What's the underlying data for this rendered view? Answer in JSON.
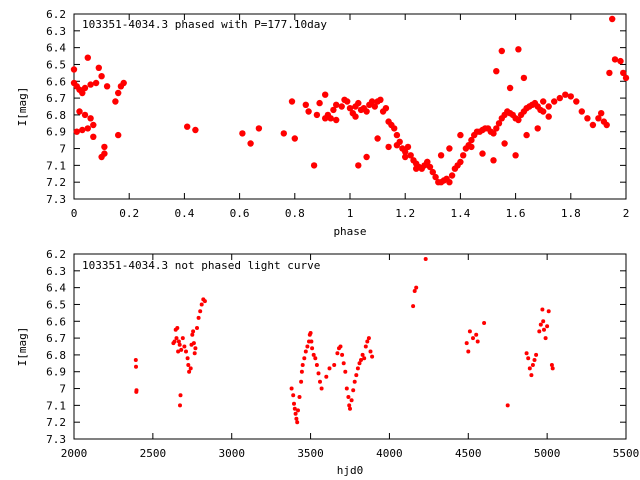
{
  "chart_data": [
    {
      "type": "scatter",
      "title": "103351-4034.3 phased with P=177.10day",
      "xlabel": "phase",
      "ylabel": "I[mag]",
      "xlim": [
        0,
        2
      ],
      "ylim": [
        7.3,
        6.2
      ],
      "y_inverted": true,
      "grid": false,
      "marker": "filled-circle",
      "color": "#ff0000",
      "xticks": [
        "0",
        "0.2",
        "0.4",
        "0.6",
        "0.8",
        "1",
        "1.2",
        "1.4",
        "1.6",
        "1.8",
        "2"
      ],
      "yticks": [
        "6.2",
        "6.3",
        "6.4",
        "6.5",
        "6.6",
        "6.7",
        "6.8",
        "6.9",
        "7",
        "7.1",
        "7.2",
        "7.3"
      ],
      "points": [
        [
          0.0,
          6.53
        ],
        [
          0.0,
          6.61
        ],
        [
          0.01,
          6.9
        ],
        [
          0.01,
          6.63
        ],
        [
          0.02,
          6.65
        ],
        [
          0.02,
          6.78
        ],
        [
          0.03,
          6.67
        ],
        [
          0.03,
          6.89
        ],
        [
          0.04,
          6.64
        ],
        [
          0.04,
          6.8
        ],
        [
          0.05,
          6.46
        ],
        [
          0.05,
          6.88
        ],
        [
          0.06,
          6.62
        ],
        [
          0.06,
          6.82
        ],
        [
          0.07,
          6.86
        ],
        [
          0.07,
          6.93
        ],
        [
          0.08,
          6.61
        ],
        [
          0.09,
          6.52
        ],
        [
          0.1,
          6.57
        ],
        [
          0.1,
          7.05
        ],
        [
          0.11,
          7.03
        ],
        [
          0.11,
          6.99
        ],
        [
          0.12,
          6.63
        ],
        [
          0.15,
          6.72
        ],
        [
          0.16,
          6.67
        ],
        [
          0.16,
          6.92
        ],
        [
          0.17,
          6.63
        ],
        [
          0.18,
          6.61
        ],
        [
          0.41,
          6.87
        ],
        [
          0.44,
          6.89
        ],
        [
          0.61,
          6.91
        ],
        [
          0.64,
          6.97
        ],
        [
          0.67,
          6.88
        ],
        [
          0.76,
          6.91
        ],
        [
          0.79,
          6.72
        ],
        [
          0.8,
          6.94
        ],
        [
          0.84,
          6.74
        ],
        [
          0.85,
          6.78
        ],
        [
          0.87,
          7.1
        ],
        [
          0.88,
          6.8
        ],
        [
          0.89,
          6.73
        ],
        [
          0.91,
          6.68
        ],
        [
          0.91,
          6.82
        ],
        [
          0.92,
          6.8
        ],
        [
          0.93,
          6.82
        ],
        [
          0.94,
          6.77
        ],
        [
          0.95,
          6.74
        ],
        [
          0.95,
          6.83
        ],
        [
          0.97,
          6.75
        ],
        [
          0.98,
          6.71
        ],
        [
          0.99,
          6.72
        ],
        [
          1.0,
          6.76
        ],
        [
          1.01,
          6.79
        ],
        [
          1.02,
          6.81
        ],
        [
          1.02,
          6.75
        ],
        [
          1.03,
          6.73
        ],
        [
          1.04,
          6.77
        ],
        [
          1.05,
          6.76
        ],
        [
          1.06,
          6.78
        ],
        [
          1.07,
          6.74
        ],
        [
          1.08,
          6.72
        ],
        [
          1.09,
          6.75
        ],
        [
          1.1,
          6.72
        ],
        [
          1.11,
          6.71
        ],
        [
          1.12,
          6.78
        ],
        [
          1.13,
          6.76
        ],
        [
          1.14,
          6.84
        ],
        [
          1.15,
          6.86
        ],
        [
          1.16,
          6.88
        ],
        [
          1.17,
          6.92
        ],
        [
          1.18,
          6.96
        ],
        [
          1.19,
          7.0
        ],
        [
          1.2,
          7.02
        ],
        [
          1.21,
          6.99
        ],
        [
          1.22,
          7.04
        ],
        [
          1.23,
          7.07
        ],
        [
          1.24,
          7.09
        ],
        [
          1.25,
          7.11
        ],
        [
          1.26,
          7.12
        ],
        [
          1.27,
          7.1
        ],
        [
          1.28,
          7.08
        ],
        [
          1.29,
          7.11
        ],
        [
          1.3,
          7.14
        ],
        [
          1.31,
          7.17
        ],
        [
          1.32,
          7.2
        ],
        [
          1.33,
          7.2
        ],
        [
          1.34,
          7.19
        ],
        [
          1.35,
          7.18
        ],
        [
          1.36,
          7.2
        ],
        [
          1.37,
          7.16
        ],
        [
          1.38,
          7.12
        ],
        [
          1.39,
          7.1
        ],
        [
          1.4,
          7.08
        ],
        [
          1.41,
          7.04
        ],
        [
          1.42,
          7.0
        ],
        [
          1.43,
          6.98
        ],
        [
          1.44,
          6.95
        ],
        [
          1.45,
          6.92
        ],
        [
          1.46,
          6.9
        ],
        [
          1.47,
          6.9
        ],
        [
          1.48,
          6.89
        ],
        [
          1.49,
          6.88
        ],
        [
          1.5,
          6.88
        ],
        [
          1.51,
          6.9
        ],
        [
          1.52,
          6.91
        ],
        [
          1.53,
          6.88
        ],
        [
          1.54,
          6.85
        ],
        [
          1.55,
          6.82
        ],
        [
          1.56,
          6.8
        ],
        [
          1.57,
          6.78
        ],
        [
          1.58,
          6.79
        ],
        [
          1.59,
          6.8
        ],
        [
          1.6,
          6.82
        ],
        [
          1.61,
          6.83
        ],
        [
          1.62,
          6.8
        ],
        [
          1.63,
          6.78
        ],
        [
          1.64,
          6.76
        ],
        [
          1.65,
          6.75
        ],
        [
          1.66,
          6.74
        ],
        [
          1.67,
          6.73
        ],
        [
          1.68,
          6.75
        ],
        [
          1.69,
          6.77
        ],
        [
          1.7,
          6.78
        ],
        [
          1.72,
          6.75
        ],
        [
          1.74,
          6.72
        ],
        [
          1.76,
          6.7
        ],
        [
          1.78,
          6.68
        ],
        [
          1.8,
          6.69
        ],
        [
          1.82,
          6.72
        ],
        [
          1.84,
          6.78
        ],
        [
          1.86,
          6.82
        ],
        [
          1.88,
          6.86
        ],
        [
          1.9,
          6.82
        ],
        [
          1.91,
          6.79
        ],
        [
          1.92,
          6.84
        ],
        [
          1.93,
          6.86
        ],
        [
          1.94,
          6.55
        ],
        [
          1.95,
          6.23
        ],
        [
          1.96,
          6.47
        ],
        [
          1.98,
          6.48
        ],
        [
          1.99,
          6.55
        ],
        [
          2.0,
          6.58
        ],
        [
          1.03,
          7.1
        ],
        [
          1.06,
          7.05
        ],
        [
          1.1,
          6.94
        ],
        [
          1.14,
          6.99
        ],
        [
          1.17,
          6.98
        ],
        [
          1.2,
          7.05
        ],
        [
          1.24,
          7.12
        ],
        [
          1.28,
          7.08
        ],
        [
          1.33,
          7.04
        ],
        [
          1.36,
          7.0
        ],
        [
          1.4,
          6.92
        ],
        [
          1.44,
          6.99
        ],
        [
          1.48,
          7.03
        ],
        [
          1.52,
          7.07
        ],
        [
          1.56,
          6.97
        ],
        [
          1.6,
          7.04
        ],
        [
          1.64,
          6.92
        ],
        [
          1.68,
          6.88
        ],
        [
          1.72,
          6.81
        ],
        [
          1.55,
          6.42
        ],
        [
          1.61,
          6.41
        ],
        [
          1.53,
          6.54
        ],
        [
          1.58,
          6.64
        ],
        [
          1.63,
          6.58
        ],
        [
          1.7,
          6.72
        ]
      ]
    },
    {
      "type": "scatter",
      "title": "103351-4034.3 not phased light curve",
      "xlabel": "hjd0",
      "ylabel": "I[mag]",
      "xlim": [
        2000,
        5500
      ],
      "ylim": [
        7.3,
        6.2
      ],
      "y_inverted": true,
      "grid": false,
      "marker": "small-filled-circle",
      "color": "#ff0000",
      "xticks": [
        "2000",
        "2500",
        "3000",
        "3500",
        "4000",
        "4500",
        "5000",
        "5500"
      ],
      "yticks": [
        "6.2",
        "6.3",
        "6.4",
        "6.5",
        "6.6",
        "6.7",
        "6.8",
        "6.9",
        "7",
        "7.1",
        "7.2",
        "7.3"
      ],
      "points": [
        [
          2392,
          6.83
        ],
        [
          2393,
          6.87
        ],
        [
          2395,
          7.02
        ],
        [
          2396,
          7.01
        ],
        [
          2630,
          6.73
        ],
        [
          2638,
          6.72
        ],
        [
          2645,
          6.65
        ],
        [
          2650,
          6.7
        ],
        [
          2655,
          6.64
        ],
        [
          2660,
          6.78
        ],
        [
          2665,
          6.72
        ],
        [
          2670,
          6.74
        ],
        [
          2672,
          7.1
        ],
        [
          2675,
          7.04
        ],
        [
          2680,
          6.77
        ],
        [
          2690,
          6.7
        ],
        [
          2700,
          6.75
        ],
        [
          2710,
          6.78
        ],
        [
          2720,
          6.82
        ],
        [
          2725,
          6.86
        ],
        [
          2730,
          6.9
        ],
        [
          2740,
          6.88
        ],
        [
          2745,
          6.74
        ],
        [
          2750,
          6.68
        ],
        [
          2755,
          6.66
        ],
        [
          2760,
          6.73
        ],
        [
          2765,
          6.79
        ],
        [
          2770,
          6.76
        ],
        [
          2780,
          6.64
        ],
        [
          2790,
          6.58
        ],
        [
          2800,
          6.54
        ],
        [
          2810,
          6.5
        ],
        [
          2820,
          6.47
        ],
        [
          2830,
          6.48
        ],
        [
          3380,
          7.0
        ],
        [
          3390,
          7.04
        ],
        [
          3395,
          7.09
        ],
        [
          3400,
          7.12
        ],
        [
          3405,
          7.15
        ],
        [
          3410,
          7.18
        ],
        [
          3415,
          7.2
        ],
        [
          3420,
          7.13
        ],
        [
          3430,
          7.05
        ],
        [
          3440,
          6.96
        ],
        [
          3445,
          6.9
        ],
        [
          3450,
          6.86
        ],
        [
          3460,
          6.82
        ],
        [
          3470,
          6.78
        ],
        [
          3480,
          6.75
        ],
        [
          3490,
          6.72
        ],
        [
          3495,
          6.68
        ],
        [
          3500,
          6.67
        ],
        [
          3505,
          6.72
        ],
        [
          3510,
          6.76
        ],
        [
          3520,
          6.8
        ],
        [
          3530,
          6.82
        ],
        [
          3540,
          6.86
        ],
        [
          3550,
          6.91
        ],
        [
          3560,
          6.96
        ],
        [
          3570,
          7.0
        ],
        [
          3600,
          6.93
        ],
        [
          3620,
          6.88
        ],
        [
          3650,
          6.86
        ],
        [
          3670,
          6.79
        ],
        [
          3680,
          6.76
        ],
        [
          3690,
          6.75
        ],
        [
          3700,
          6.8
        ],
        [
          3710,
          6.85
        ],
        [
          3720,
          6.9
        ],
        [
          3730,
          7.0
        ],
        [
          3740,
          7.05
        ],
        [
          3745,
          7.1
        ],
        [
          3750,
          7.12
        ],
        [
          3760,
          7.07
        ],
        [
          3770,
          7.01
        ],
        [
          3780,
          6.96
        ],
        [
          3790,
          6.92
        ],
        [
          3800,
          6.88
        ],
        [
          3810,
          6.85
        ],
        [
          3820,
          6.83
        ],
        [
          3830,
          6.8
        ],
        [
          3840,
          6.82
        ],
        [
          3850,
          6.75
        ],
        [
          3860,
          6.72
        ],
        [
          3870,
          6.7
        ],
        [
          3880,
          6.78
        ],
        [
          3890,
          6.81
        ],
        [
          4150,
          6.51
        ],
        [
          4160,
          6.42
        ],
        [
          4170,
          6.4
        ],
        [
          4230,
          6.23
        ],
        [
          4490,
          6.73
        ],
        [
          4500,
          6.78
        ],
        [
          4510,
          6.66
        ],
        [
          4530,
          6.7
        ],
        [
          4550,
          6.68
        ],
        [
          4560,
          6.72
        ],
        [
          4600,
          6.61
        ],
        [
          4750,
          7.1
        ],
        [
          4870,
          6.79
        ],
        [
          4880,
          6.82
        ],
        [
          4890,
          6.88
        ],
        [
          4900,
          6.92
        ],
        [
          4910,
          6.86
        ],
        [
          4920,
          6.83
        ],
        [
          4930,
          6.8
        ],
        [
          4950,
          6.66
        ],
        [
          4960,
          6.62
        ],
        [
          4970,
          6.53
        ],
        [
          4975,
          6.6
        ],
        [
          4980,
          6.65
        ],
        [
          4990,
          6.7
        ],
        [
          5000,
          6.63
        ],
        [
          5010,
          6.54
        ],
        [
          5030,
          6.86
        ],
        [
          5035,
          6.88
        ]
      ]
    }
  ]
}
